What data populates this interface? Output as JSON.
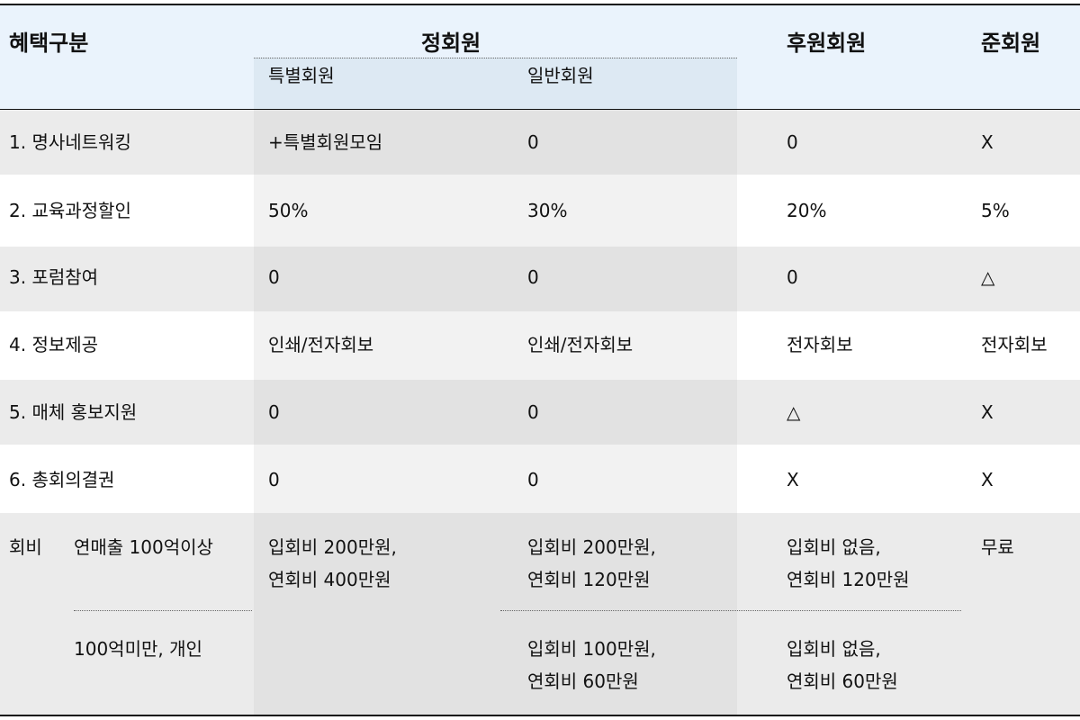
{
  "header": {
    "category": "혜택구분",
    "regular": "정회원",
    "special": "특별회원",
    "general": "일반회원",
    "supporting": "후원회원",
    "associate": "준회원"
  },
  "rows": [
    {
      "label": "1. 명사네트워킹",
      "special": "+특별회원모임",
      "general": "0",
      "supporting": "0",
      "associate": "X"
    },
    {
      "label": "2. 교육과정할인",
      "special": "50%",
      "general": "30%",
      "supporting": "20%",
      "associate": "5%"
    },
    {
      "label": "3. 포럼참여",
      "special": "0",
      "general": "0",
      "supporting": "0",
      "associate": "△"
    },
    {
      "label": "4. 정보제공",
      "special": "인쇄/전자회보",
      "general": "인쇄/전자회보",
      "supporting": "전자회보",
      "associate": "전자회보"
    },
    {
      "label": "5. 매체 홍보지원",
      "special": "0",
      "general": "0",
      "supporting": "△",
      "associate": "X"
    },
    {
      "label": "6. 총회의결권",
      "special": "0",
      "general": "0",
      "supporting": "X",
      "associate": "X"
    }
  ],
  "fees": {
    "label": "회비",
    "tier1": {
      "label": "연매출 100억이상",
      "special": [
        "입회비 200만원,",
        "연회비 400만원"
      ],
      "general": [
        "입회비 200만원,",
        "연회비 120만원"
      ],
      "supporting": [
        "입회비 없음,",
        "연회비 120만원"
      ],
      "associate": "무료"
    },
    "tier2": {
      "label": "100억미만, 개인",
      "general": [
        "입회비 100만원,",
        "연회비 60만원"
      ],
      "supporting": [
        "입회비 없음,",
        "연회비 60만원"
      ]
    }
  }
}
